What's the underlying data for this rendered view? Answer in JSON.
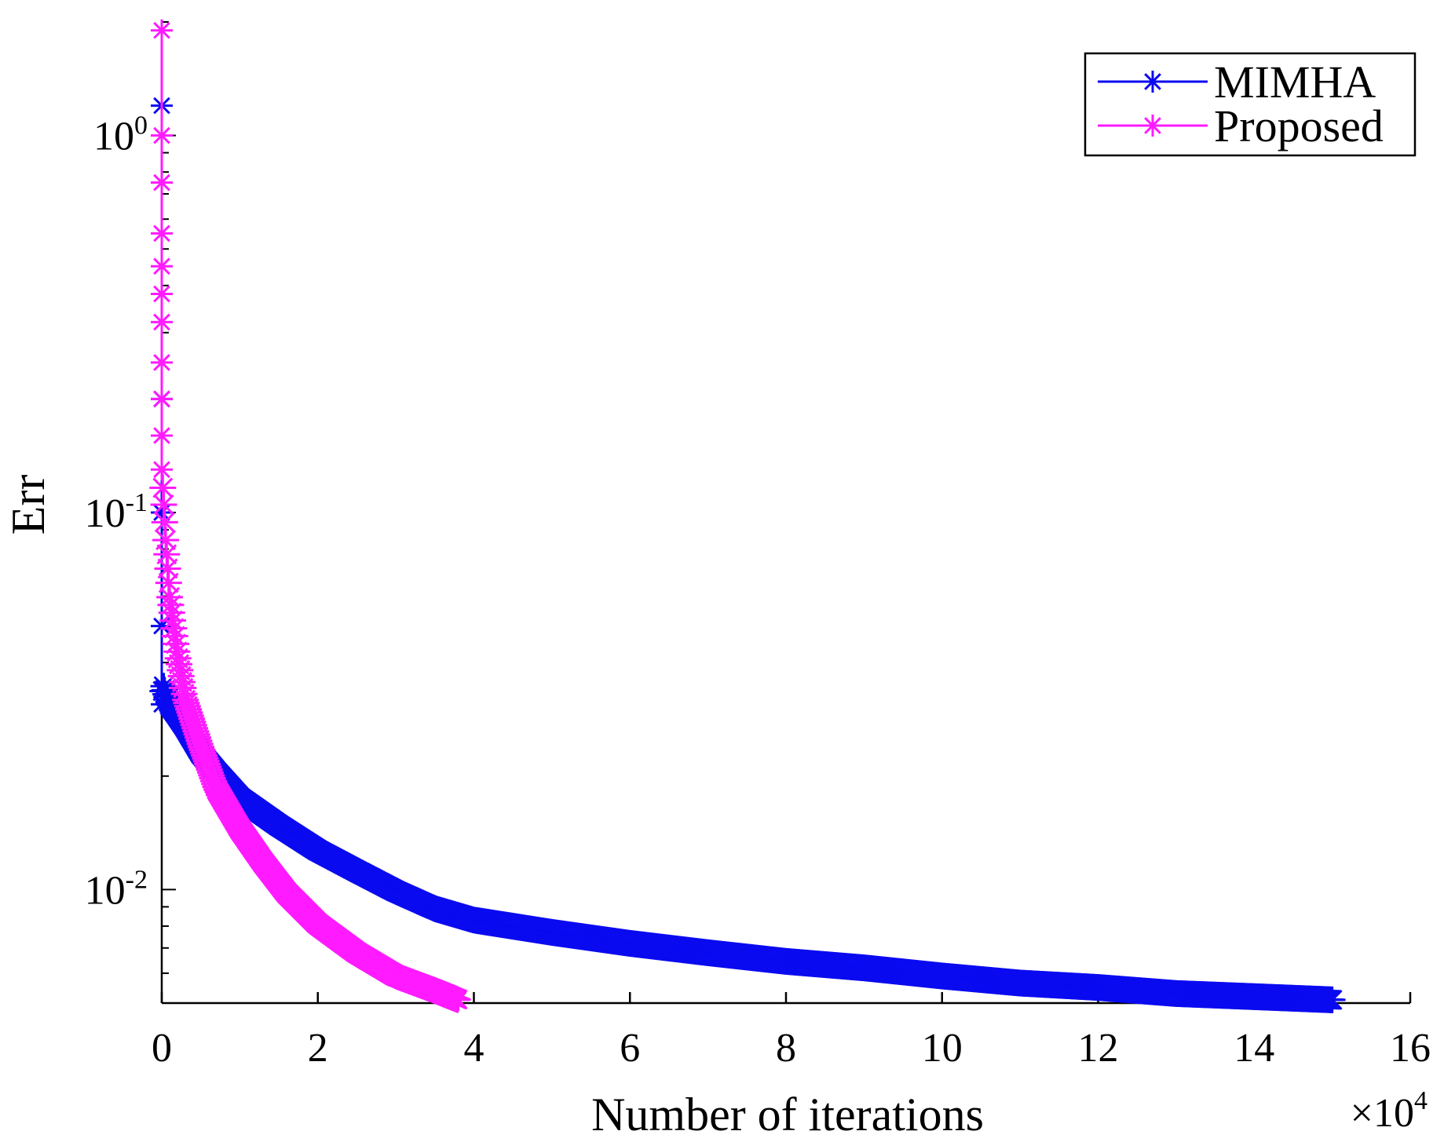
{
  "chart_data": {
    "type": "line",
    "title": "",
    "xlabel": "Number of iterations",
    "ylabel": "Err",
    "x_multiplier_label": "×10",
    "x_multiplier_exponent": "4",
    "xlim": [
      0,
      16
    ],
    "ylim": [
      0.005,
      2.0
    ],
    "y_scale": "log",
    "grid": false,
    "legend_position": "top-right",
    "x_ticks": [
      {
        "value": 0,
        "label": "0"
      },
      {
        "value": 2,
        "label": "2"
      },
      {
        "value": 4,
        "label": "4"
      },
      {
        "value": 6,
        "label": "6"
      },
      {
        "value": 8,
        "label": "8"
      },
      {
        "value": 10,
        "label": "10"
      },
      {
        "value": 12,
        "label": "12"
      },
      {
        "value": 14,
        "label": "14"
      },
      {
        "value": 16,
        "label": "16"
      }
    ],
    "y_ticks": [
      {
        "value": 1,
        "base": "10",
        "exp": "0"
      },
      {
        "value": 0.1,
        "base": "10",
        "exp": "-1"
      },
      {
        "value": 0.01,
        "base": "10",
        "exp": "-2"
      }
    ],
    "series": [
      {
        "name": "MIMHA",
        "color": "#0a0af0",
        "marker": "asterisk",
        "x": [
          0,
          0,
          0,
          0,
          0,
          0.02,
          0.05,
          0.1,
          0.2,
          0.3,
          0.5,
          0.7,
          1.0,
          1.5,
          2.0,
          2.5,
          3.0,
          3.5,
          4.0,
          5.0,
          6.0,
          7.0,
          8.0,
          9.0,
          10.0,
          11.0,
          12.0,
          13.0,
          14.0,
          15.0
        ],
        "y": [
          1.2,
          0.2,
          0.1,
          0.05,
          0.031,
          0.035,
          0.033,
          0.031,
          0.029,
          0.027,
          0.023,
          0.0205,
          0.0175,
          0.0148,
          0.0127,
          0.0112,
          0.0099,
          0.0089,
          0.0083,
          0.0077,
          0.0072,
          0.0068,
          0.00645,
          0.0062,
          0.0059,
          0.00565,
          0.0055,
          0.0053,
          0.0052,
          0.0051
        ]
      },
      {
        "name": "Proposed",
        "color": "#ff1aff",
        "marker": "asterisk",
        "x": [
          0,
          0,
          0,
          0,
          0,
          0,
          0,
          0,
          0,
          0,
          0,
          0.02,
          0.05,
          0.1,
          0.2,
          0.3,
          0.5,
          0.7,
          1.0,
          1.3,
          1.6,
          2.0,
          2.5,
          3.0,
          3.5,
          3.8
        ],
        "y": [
          1.9,
          1.0,
          0.75,
          0.55,
          0.45,
          0.38,
          0.32,
          0.25,
          0.2,
          0.16,
          0.13,
          0.11,
          0.085,
          0.06,
          0.042,
          0.032,
          0.024,
          0.0185,
          0.0145,
          0.0118,
          0.0098,
          0.0081,
          0.0068,
          0.0059,
          0.0054,
          0.0051
        ]
      }
    ]
  }
}
